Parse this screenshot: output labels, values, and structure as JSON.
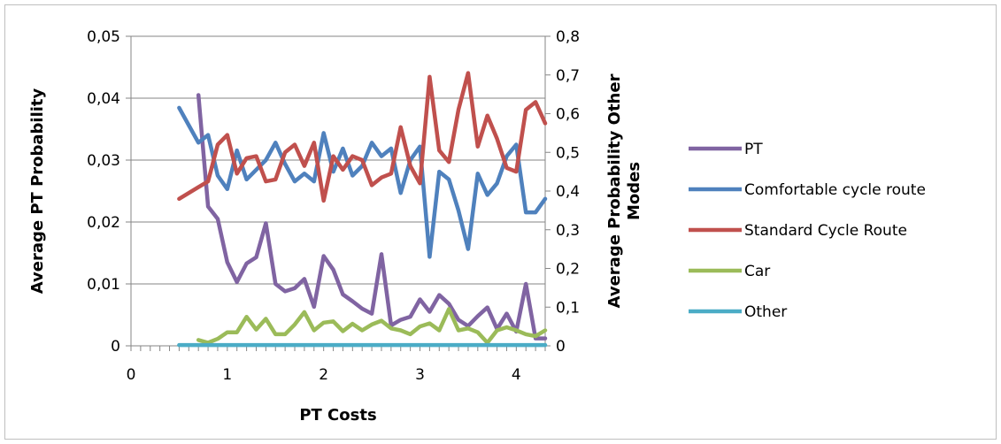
{
  "chart_data": {
    "type": "line",
    "xlabel": "PT Costs",
    "ylabel_left": "Average PT Probability",
    "ylabel_right": [
      "Average Probability Other",
      "Modes"
    ],
    "xlim": [
      0,
      4.3
    ],
    "ylim_left": [
      0,
      0.05
    ],
    "ylim_right": [
      0,
      0.8
    ],
    "x_ticks": [
      {
        "value": 0,
        "label": "0"
      },
      {
        "value": 1,
        "label": "1"
      },
      {
        "value": 2,
        "label": "2"
      },
      {
        "value": 3,
        "label": "3"
      },
      {
        "value": 4,
        "label": "4"
      }
    ],
    "y_left_ticks": [
      {
        "value": 0,
        "label": "0"
      },
      {
        "value": 0.01,
        "label": "0,01"
      },
      {
        "value": 0.02,
        "label": "0,02"
      },
      {
        "value": 0.03,
        "label": "0,03"
      },
      {
        "value": 0.04,
        "label": "0,04"
      },
      {
        "value": 0.05,
        "label": "0,05"
      }
    ],
    "y_right_ticks": [
      {
        "value": 0,
        "label": "0"
      },
      {
        "value": 0.1,
        "label": "0,1"
      },
      {
        "value": 0.2,
        "label": "0,2"
      },
      {
        "value": 0.3,
        "label": "0,3"
      },
      {
        "value": 0.4,
        "label": "0,4"
      },
      {
        "value": 0.5,
        "label": "0,5"
      },
      {
        "value": 0.6,
        "label": "0,6"
      },
      {
        "value": 0.7,
        "label": "0,7"
      },
      {
        "value": 0.8,
        "label": "0,8"
      }
    ],
    "grid": true,
    "legend_position": "right",
    "series": [
      {
        "name": "PT",
        "axis": "left",
        "color": "#8064a2",
        "x": [
          0.7,
          0.8,
          0.9,
          1.0,
          1.1,
          1.2,
          1.3,
          1.4,
          1.5,
          1.6,
          1.7,
          1.8,
          1.9,
          2.0,
          2.1,
          2.2,
          2.3,
          2.4,
          2.5,
          2.6,
          2.7,
          2.8,
          2.9,
          3.0,
          3.1,
          3.2,
          3.3,
          3.4,
          3.5,
          3.6,
          3.7,
          3.8,
          3.9,
          4.0,
          4.1,
          4.2,
          4.3
        ],
        "y": [
          0.0405,
          0.0225,
          0.0205,
          0.0135,
          0.0103,
          0.0133,
          0.0143,
          0.0198,
          0.01,
          0.0088,
          0.0093,
          0.0108,
          0.0063,
          0.0145,
          0.0123,
          0.0083,
          0.0072,
          0.006,
          0.0052,
          0.0148,
          0.0033,
          0.0042,
          0.0047,
          0.0075,
          0.0055,
          0.0082,
          0.0068,
          0.0042,
          0.0032,
          0.0048,
          0.0062,
          0.0027,
          0.0052,
          0.0023,
          0.01,
          0.0012,
          0.0012
        ]
      },
      {
        "name": "Comfortable cycle route",
        "axis": "right",
        "color": "#4f81bd",
        "x": [
          0.5,
          0.6,
          0.7,
          0.8,
          0.9,
          1.0,
          1.1,
          1.2,
          1.3,
          1.4,
          1.5,
          1.6,
          1.7,
          1.8,
          1.9,
          2.0,
          2.1,
          2.2,
          2.3,
          2.4,
          2.5,
          2.6,
          2.7,
          2.8,
          2.9,
          3.0,
          3.1,
          3.2,
          3.3,
          3.4,
          3.5,
          3.6,
          3.7,
          3.8,
          3.9,
          4.0,
          4.1,
          4.2,
          4.3
        ],
        "y": [
          0.615,
          0.57,
          0.525,
          0.545,
          0.44,
          0.405,
          0.505,
          0.43,
          0.455,
          0.48,
          0.525,
          0.47,
          0.425,
          0.445,
          0.425,
          0.55,
          0.45,
          0.51,
          0.44,
          0.465,
          0.525,
          0.49,
          0.51,
          0.395,
          0.48,
          0.515,
          0.23,
          0.45,
          0.43,
          0.35,
          0.25,
          0.445,
          0.39,
          0.42,
          0.49,
          0.52,
          0.345,
          0.345,
          0.38
        ]
      },
      {
        "name": "Standard Cycle Route",
        "axis": "right",
        "color": "#c0504d",
        "x": [
          0.5,
          0.6,
          0.7,
          0.8,
          0.9,
          1.0,
          1.1,
          1.2,
          1.3,
          1.4,
          1.5,
          1.6,
          1.7,
          1.8,
          1.9,
          2.0,
          2.1,
          2.2,
          2.3,
          2.4,
          2.5,
          2.6,
          2.7,
          2.8,
          2.9,
          3.0,
          3.1,
          3.2,
          3.3,
          3.4,
          3.5,
          3.6,
          3.7,
          3.8,
          3.9,
          4.0,
          4.1,
          4.2,
          4.3
        ],
        "y": [
          0.38,
          0.395,
          0.41,
          0.425,
          0.52,
          0.545,
          0.445,
          0.485,
          0.49,
          0.425,
          0.43,
          0.5,
          0.52,
          0.465,
          0.525,
          0.375,
          0.49,
          0.455,
          0.49,
          0.48,
          0.415,
          0.435,
          0.445,
          0.565,
          0.465,
          0.42,
          0.695,
          0.505,
          0.475,
          0.61,
          0.705,
          0.515,
          0.595,
          0.535,
          0.46,
          0.45,
          0.61,
          0.63,
          0.575
        ]
      },
      {
        "name": "Car",
        "axis": "right",
        "color": "#9bbb59",
        "x": [
          0.7,
          0.8,
          0.9,
          1.0,
          1.1,
          1.2,
          1.3,
          1.4,
          1.5,
          1.6,
          1.7,
          1.8,
          1.9,
          2.0,
          2.1,
          2.2,
          2.3,
          2.4,
          2.5,
          2.6,
          2.7,
          2.8,
          2.9,
          3.0,
          3.1,
          3.2,
          3.3,
          3.4,
          3.5,
          3.6,
          3.7,
          3.8,
          3.9,
          4.0,
          4.1,
          4.2,
          4.3
        ],
        "y": [
          0.015,
          0.008,
          0.018,
          0.035,
          0.035,
          0.075,
          0.042,
          0.07,
          0.03,
          0.03,
          0.055,
          0.087,
          0.04,
          0.06,
          0.063,
          0.038,
          0.057,
          0.04,
          0.055,
          0.065,
          0.045,
          0.04,
          0.03,
          0.05,
          0.058,
          0.04,
          0.095,
          0.04,
          0.045,
          0.035,
          0.008,
          0.04,
          0.048,
          0.04,
          0.03,
          0.025,
          0.04
        ]
      },
      {
        "name": "Other",
        "axis": "right",
        "color": "#4bacc6",
        "x": [
          0.5,
          4.3
        ],
        "y": [
          0.002,
          0.002
        ]
      }
    ]
  }
}
